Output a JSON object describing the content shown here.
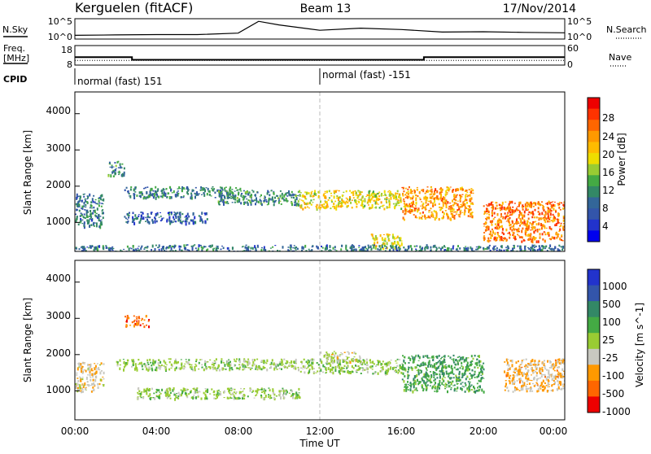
{
  "header": {
    "station": "Kerguelen (fitACF)",
    "beam": "Beam 13",
    "date": "17/Nov/2014"
  },
  "nsky_panel": {
    "left_label": "N.Sky",
    "right_label": "N.Search",
    "left_ticks": [
      "10^5",
      "10^0"
    ],
    "right_ticks": [
      "10^5",
      "10^0"
    ]
  },
  "freq_panel": {
    "left_label_line1": "Freq.",
    "left_label_line2": "[MHz]",
    "left_ticks": [
      "18",
      "8"
    ],
    "right_label": "Nave",
    "right_ticks": [
      "60",
      "0"
    ],
    "freq_steps": [
      {
        "t0": 0,
        "t1": 2.8,
        "mhz": 12
      },
      {
        "t0": 2.8,
        "t1": 17.1,
        "mhz": 10.5
      },
      {
        "t0": 17.1,
        "t1": 24,
        "mhz": 12
      }
    ],
    "nave_level": 13
  },
  "cpid_row": {
    "label": "CPID",
    "segments": [
      {
        "text": "normal (fast) 151",
        "start_hour": 0
      },
      {
        "text": "normal (fast) -151",
        "start_hour": 12
      }
    ]
  },
  "power_panel": {
    "ylabel": "Slant Range [km]",
    "yticks": [
      "4000",
      "3000",
      "2000",
      "1000"
    ],
    "colorbar_title": "Power [dB]",
    "colorbar_ticks": [
      "28",
      "24",
      "20",
      "16",
      "12",
      "8",
      "4"
    ],
    "colorbar_colors": [
      "#ee0000",
      "#ff3300",
      "#ff6600",
      "#ff9900",
      "#ffbb00",
      "#eedd00",
      "#99cc33",
      "#44aa44",
      "#338866",
      "#336699",
      "#3355aa",
      "#2233cc",
      "#0000ee"
    ]
  },
  "velocity_panel": {
    "ylabel": "Slant Range [km]",
    "yticks": [
      "4000",
      "3000",
      "2000",
      "1000"
    ],
    "colorbar_title": "Velocity [m s^-1]",
    "colorbar_ticks": [
      "1000",
      "500",
      "100",
      "25",
      "-25",
      "-100",
      "-500",
      "-1000"
    ],
    "colorbar_colors": [
      "#2233cc",
      "#3355aa",
      "#338866",
      "#44aa44",
      "#99cc33",
      "#c8c8c0",
      "#ff9900",
      "#ff6600",
      "#ee0000"
    ]
  },
  "x_axis": {
    "xlabel": "Time UT",
    "ticks": [
      "00:00",
      "04:00",
      "08:00",
      "12:00",
      "16:00",
      "20:00",
      "00:00"
    ]
  },
  "chart_data": [
    {
      "type": "line",
      "title": "N.Sky",
      "x_unit": "hour UT",
      "x": [
        0,
        2,
        4,
        6,
        8,
        9,
        10,
        12,
        14,
        16,
        18,
        20,
        22,
        24
      ],
      "y_log10": [
        0.6,
        0.7,
        0.8,
        0.8,
        1.2,
        4.5,
        3.5,
        2.0,
        2.6,
        2.2,
        1.5,
        1.6,
        1.4,
        1.3
      ]
    },
    {
      "type": "line",
      "title": "Freq. [MHz]",
      "x": [
        0,
        2.8,
        2.8,
        17.1,
        17.1,
        24
      ],
      "y": [
        12,
        12,
        10.5,
        10.5,
        12,
        12
      ]
    },
    {
      "type": "heatmap",
      "title": "Power [dB]",
      "xlabel": "Time UT",
      "ylabel": "Slant Range [km]",
      "xlim": [
        0,
        24
      ],
      "ylim": [
        200,
        4600
      ],
      "clim": [
        0,
        30
      ],
      "regions": [
        {
          "t0": 0.0,
          "t1": 1.4,
          "r0": 900,
          "r1": 1800,
          "level": 8
        },
        {
          "t0": 1.6,
          "t1": 2.4,
          "r0": 2300,
          "r1": 2700,
          "level": 10
        },
        {
          "t0": 2.4,
          "t1": 6.5,
          "r0": 1000,
          "r1": 1300,
          "level": 6
        },
        {
          "t0": 2.4,
          "t1": 8.5,
          "r0": 1700,
          "r1": 2000,
          "level": 9
        },
        {
          "t0": 7.0,
          "t1": 11.0,
          "r0": 1500,
          "r1": 1900,
          "level": 10
        },
        {
          "t0": 11.0,
          "t1": 16.0,
          "r0": 1400,
          "r1": 1900,
          "level": 18
        },
        {
          "t0": 14.5,
          "t1": 16.0,
          "r0": 300,
          "r1": 700,
          "level": 18
        },
        {
          "t0": 16.0,
          "t1": 19.5,
          "r0": 1100,
          "r1": 2000,
          "level": 22
        },
        {
          "t0": 20.0,
          "t1": 24.0,
          "r0": 500,
          "r1": 1600,
          "level": 24
        },
        {
          "t0": 0.0,
          "t1": 24.0,
          "r0": 200,
          "r1": 400,
          "level": 8
        }
      ]
    },
    {
      "type": "heatmap",
      "title": "Velocity [m s^-1]",
      "xlabel": "Time UT",
      "ylabel": "Slant Range [km]",
      "xlim": [
        0,
        24
      ],
      "ylim": [
        200,
        4600
      ],
      "clim": [
        -1000,
        1000
      ],
      "regions": [
        {
          "t0": 0.0,
          "t1": 1.4,
          "r0": 1000,
          "r1": 1800,
          "value": -300
        },
        {
          "t0": 2.4,
          "t1": 3.6,
          "r0": 2800,
          "r1": 3100,
          "value": -700
        },
        {
          "t0": 2.0,
          "t1": 11.0,
          "r0": 1600,
          "r1": 1900,
          "value": 0
        },
        {
          "t0": 3.0,
          "t1": 11.0,
          "r0": 800,
          "r1": 1100,
          "value": 0
        },
        {
          "t0": 11.0,
          "t1": 16.0,
          "r0": 1500,
          "r1": 1900,
          "value": 0
        },
        {
          "t0": 12.0,
          "t1": 14.0,
          "r0": 1800,
          "r1": 2100,
          "value": -200
        },
        {
          "t0": 16.0,
          "t1": 20.0,
          "r0": 1000,
          "r1": 2000,
          "value": 300
        },
        {
          "t0": 21.0,
          "t1": 24.0,
          "r0": 1000,
          "r1": 1900,
          "value": -400
        }
      ]
    }
  ]
}
